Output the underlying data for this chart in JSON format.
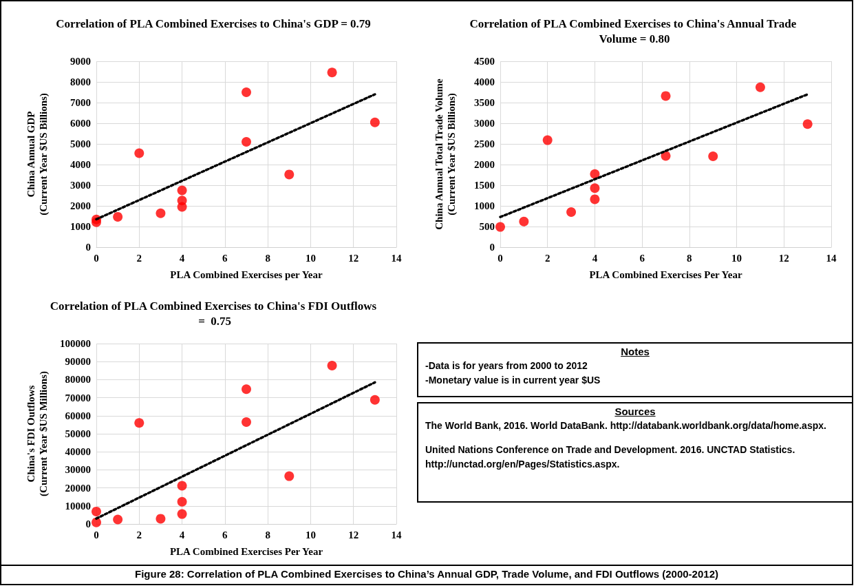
{
  "chart_data": [
    {
      "type": "scatter",
      "title": "Correlation of PLA Combined Exercises to China's GDP = 0.79",
      "xlabel": "PLA Combined Exercises per Year",
      "ylabel": "China Annual GDP\n(Current Year $US Billions)",
      "xlim": [
        0,
        14
      ],
      "xticks": [
        0,
        2,
        4,
        6,
        8,
        10,
        12,
        14
      ],
      "ylim": [
        0,
        9000
      ],
      "yticks": [
        0,
        1000,
        2000,
        3000,
        4000,
        5000,
        6000,
        7000,
        8000,
        9000
      ],
      "grid": true,
      "marker": "circle",
      "annotations": [
        "Figure 28: Correlation of PLA Combined Exercises to China’s Annual GDP, Trade Volume, and FDI Outflows (2000-2012)"
      ],
      "series": [
        {
          "color": "#ff0000",
          "x": [
            0,
            0,
            1,
            2,
            3,
            4,
            4,
            4,
            7,
            7,
            9,
            11,
            13
          ],
          "values": [
            1210,
            1340,
            1470,
            4550,
            1640,
            1950,
            2260,
            2750,
            5100,
            7500,
            3520,
            8460,
            6040
          ]
        },
        {
          "type": "line",
          "color": "#000000",
          "marker": "none",
          "line_style": "dotted",
          "x": [
            0,
            13
          ],
          "values": [
            1350,
            7400
          ]
        }
      ]
    },
    {
      "type": "scatter",
      "title": "Correlation of PLA Combined Exercises to China's Annual Trade Volume = 0.80",
      "xlabel": "PLA Combined Exercises Per Year",
      "ylabel": "China Annual Total Trade Volume\n(Current Year $US Billions)",
      "xlim": [
        0,
        14
      ],
      "xticks": [
        0,
        2,
        4,
        6,
        8,
        10,
        12,
        14
      ],
      "ylim": [
        0,
        4500
      ],
      "yticks": [
        0,
        500,
        1000,
        1500,
        2000,
        2500,
        3000,
        3500,
        4000,
        4500
      ],
      "grid": true,
      "marker": "circle",
      "series": [
        {
          "color": "#ff0000",
          "x": [
            0,
            1,
            2,
            3,
            4,
            4,
            4,
            7,
            7,
            9,
            11,
            13
          ],
          "values": [
            490,
            620,
            2590,
            850,
            1160,
            1430,
            1770,
            2210,
            3660,
            2200,
            3870,
            2980
          ]
        },
        {
          "type": "line",
          "color": "#000000",
          "marker": "none",
          "line_style": "dotted",
          "x": [
            0,
            13
          ],
          "values": [
            730,
            3700
          ]
        }
      ]
    },
    {
      "type": "scatter",
      "title": "Correlation of PLA Combined Exercises to China's FDI Outflows =  0.75",
      "xlabel": "PLA Combined Exercises Per Year",
      "ylabel": "China's FDI Outflows\n(Current Year $US Millions)",
      "xlim": [
        0,
        14
      ],
      "xticks": [
        0,
        2,
        4,
        6,
        8,
        10,
        12,
        14
      ],
      "ylim": [
        0,
        100000
      ],
      "yticks": [
        0,
        10000,
        20000,
        30000,
        40000,
        50000,
        60000,
        70000,
        80000,
        90000,
        100000
      ],
      "grid": true,
      "marker": "circle",
      "series": [
        {
          "color": "#ff0000",
          "x": [
            0,
            0,
            1,
            2,
            3,
            4,
            4,
            4,
            7,
            7,
            9,
            11,
            13
          ],
          "values": [
            900,
            6900,
            2500,
            56000,
            2900,
            5500,
            12300,
            21200,
            56500,
            74700,
            26500,
            87800,
            68800
          ]
        },
        {
          "type": "line",
          "color": "#000000",
          "marker": "none",
          "line_style": "dotted",
          "x": [
            0,
            13
          ],
          "values": [
            3000,
            78500
          ]
        }
      ]
    },
    {
      "type": "other",
      "title": "Notes",
      "annotations": [
        "-Data is for years from 2000 to 2012",
        "-Monetary value is in current year $US"
      ]
    },
    {
      "type": "other",
      "title": "Sources",
      "annotations": [
        "The World Bank, 2016. World DataBank. http://databank.worldbank.org/data/home.aspx.",
        "United Nations Conference on Trade and Development. 2016. UNCTAD Statistics. http://unctad.org/en/Pages/Statistics.aspx."
      ]
    }
  ]
}
